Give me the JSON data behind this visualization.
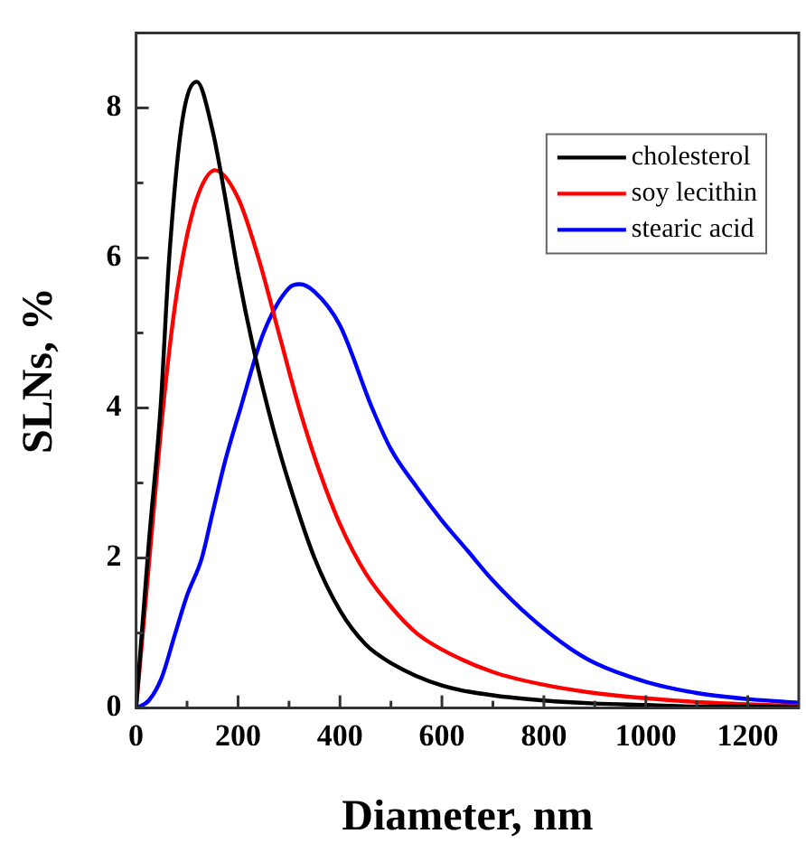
{
  "chart_data": {
    "type": "line",
    "xlabel": "Diameter, nm",
    "ylabel": "SLNs, %",
    "xlim": [
      0,
      1300
    ],
    "ylim": [
      0,
      9
    ],
    "xticks": [
      0,
      {
        "value": 100,
        "label": null
      },
      200,
      {
        "value": 300,
        "label": null
      },
      400,
      {
        "value": 500,
        "label": null
      },
      600,
      {
        "value": 700,
        "label": null
      },
      800,
      {
        "value": 900,
        "label": null
      },
      1000,
      {
        "value": 1100,
        "label": null
      },
      1200
    ],
    "yticks": [
      0,
      {
        "value": 1,
        "label": null
      },
      2,
      {
        "value": 3,
        "label": null
      },
      4,
      {
        "value": 5,
        "label": null
      },
      6,
      {
        "value": 7,
        "label": null
      },
      8
    ],
    "grid": false,
    "legend": "top right",
    "marker": "none",
    "line_style": "solid",
    "series": [
      {
        "name": "cholesterol",
        "color": "#000000",
        "x": [
          0,
          25,
          48,
          65,
          90,
          119,
          150,
          175,
          200,
          230,
          270,
          300,
          350,
          400,
          450,
          500,
          600,
          700,
          800,
          900,
          1000,
          1100,
          1200,
          1300
        ],
        "values": [
          0,
          2.2,
          4,
          6,
          7.8,
          8.35,
          7.7,
          6.8,
          5.8,
          4.8,
          3.7,
          3,
          2,
          1.3,
          0.85,
          0.6,
          0.3,
          0.17,
          0.1,
          0.06,
          0.04,
          0.02,
          0.02,
          0.01
        ]
      },
      {
        "name": "soy lecithin",
        "color": "#ff0000",
        "x": [
          0,
          25,
          50,
          75,
          100,
          125,
          155,
          200,
          240,
          280,
          320,
          360,
          400,
          450,
          500,
          550,
          600,
          700,
          800,
          900,
          1000,
          1100,
          1200,
          1300
        ],
        "values": [
          0,
          1.9,
          3.8,
          5.3,
          6.3,
          6.9,
          7.17,
          6.8,
          6,
          5,
          4,
          3.15,
          2.45,
          1.8,
          1.35,
          1,
          0.78,
          0.48,
          0.31,
          0.2,
          0.13,
          0.08,
          0.05,
          0.03
        ]
      },
      {
        "name": "stearic acid",
        "color": "#0000ff",
        "x": [
          0,
          25,
          50,
          77,
          100,
          129,
          150,
          175,
          205,
          250,
          300,
          321,
          350,
          400,
          463,
          500,
          550,
          600,
          650,
          700,
          775,
          850,
          900,
          1000,
          1100,
          1200,
          1300
        ],
        "values": [
          0,
          0.1,
          0.4,
          1,
          1.5,
          2,
          2.6,
          3.3,
          4,
          5,
          5.6,
          5.65,
          5.55,
          5.1,
          4,
          3.45,
          2.95,
          2.5,
          2.1,
          1.7,
          1.2,
          0.8,
          0.6,
          0.35,
          0.2,
          0.12,
          0.07
        ]
      }
    ]
  }
}
